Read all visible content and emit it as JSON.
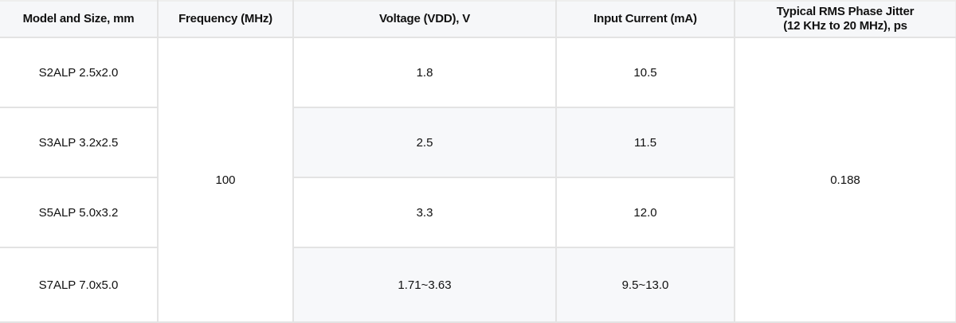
{
  "table": {
    "headers": [
      "Model and Size, mm",
      "Frequency (MHz)",
      "Voltage (VDD), V",
      "Input Current (mA)",
      "Typical RMS Phase Jitter (12 KHz to 20 MHz), ps"
    ],
    "header_jitter_line1": "Typical RMS Phase Jitter",
    "header_jitter_line2": "(12 KHz to 20 MHz), ps",
    "shared": {
      "frequency": "100",
      "jitter": "0.188"
    },
    "rows": [
      {
        "model": "S2ALP 2.5x2.0",
        "voltage": "1.8",
        "current": "10.5"
      },
      {
        "model": "S3ALP 3.2x2.5",
        "voltage": "2.5",
        "current": "11.5"
      },
      {
        "model": "S5ALP 5.0x3.2",
        "voltage": "3.3",
        "current": "12.0"
      },
      {
        "model": "S7ALP 7.0x5.0",
        "voltage": "1.71~3.63",
        "current": "9.5~13.0"
      }
    ]
  },
  "colors": {
    "header_bg": "#f6f7f9",
    "alt_row_bg": "#f7f8fa",
    "border": "#e3e3e3",
    "text": "#111111"
  }
}
